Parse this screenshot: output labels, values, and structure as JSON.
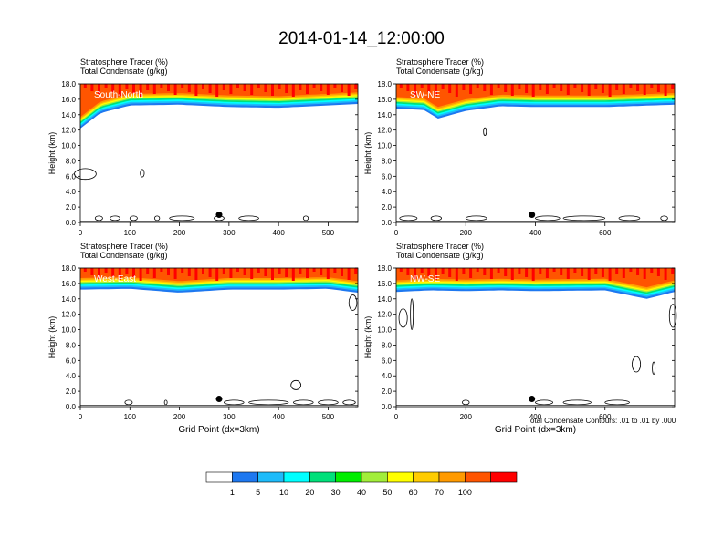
{
  "title": "2014-01-14_12:00:00",
  "footnote": "Total Condensate Contours: .01 to .01 by .000",
  "colors": {
    "levels": [
      "#ffffff",
      "#1e78f0",
      "#1ebbfa",
      "#00ffff",
      "#00e07a",
      "#00ee00",
      "#a2ee3a",
      "#ffff00",
      "#ffcc00",
      "#ff9a00",
      "#ff5500",
      "#ff0000"
    ],
    "contour": "#000000"
  },
  "colorbar": {
    "labels": [
      "1",
      "5",
      "10",
      "20",
      "30",
      "40",
      "50",
      "60",
      "70",
      "100"
    ]
  },
  "chart_data": [
    {
      "type": "heatmap",
      "panel_label": "South-North",
      "subtitle_lines": [
        "Stratosphere Tracer   (%)",
        "Total Condensate   (g/kg)"
      ],
      "ylabel": "Height (km)",
      "xlabel": "",
      "xlim": [
        0,
        560
      ],
      "ylim": [
        0,
        18
      ],
      "xticks": [
        0,
        100,
        200,
        300,
        400,
        500
      ],
      "yticks": [
        0.0,
        2.0,
        4.0,
        6.0,
        8.0,
        10.0,
        12.0,
        14.0,
        16.0,
        18.0
      ],
      "ytick_labels": [
        "0.0",
        "2.0",
        "4.0",
        "6.0",
        "8.0",
        "10.0",
        "12.0",
        "14.0",
        "16.0",
        "18.0"
      ],
      "xticks_shown": true,
      "tracer_base_km": [
        [
          0,
          12.2
        ],
        [
          40,
          14.2
        ],
        [
          100,
          15.2
        ],
        [
          200,
          15.3
        ],
        [
          300,
          15.0
        ],
        [
          400,
          14.9
        ],
        [
          500,
          15.2
        ],
        [
          560,
          15.4
        ]
      ],
      "marker_x": 280,
      "marker_height_km": 1.0,
      "condensate_clouds_km": [
        [
          10,
          6.3,
          22,
          0.7
        ],
        [
          125,
          6.4,
          4,
          0.5
        ]
      ],
      "surface_clouds_x": [
        [
          30,
          45
        ],
        [
          60,
          80
        ],
        [
          100,
          115
        ],
        [
          150,
          160
        ],
        [
          180,
          230
        ],
        [
          270,
          290
        ],
        [
          320,
          360
        ],
        [
          450,
          460
        ]
      ]
    },
    {
      "type": "heatmap",
      "panel_label": "SW-NE",
      "subtitle_lines": [
        "Stratosphere Tracer   (%)",
        "Total Condensate   (g/kg)"
      ],
      "ylabel": "Height (km)",
      "xlabel": "",
      "xlim": [
        0,
        800
      ],
      "ylim": [
        0,
        18
      ],
      "xticks": [
        0,
        200,
        400,
        600
      ],
      "yticks": [
        0.0,
        2.0,
        4.0,
        6.0,
        8.0,
        10.0,
        12.0,
        14.0,
        16.0,
        18.0
      ],
      "ytick_labels": [
        "0.0",
        "2.0",
        "4.0",
        "6.0",
        "8.0",
        "10.0",
        "12.0",
        "14.0",
        "16.0",
        "18.0"
      ],
      "xticks_shown": true,
      "tracer_base_km": [
        [
          0,
          14.8
        ],
        [
          80,
          14.6
        ],
        [
          120,
          13.5
        ],
        [
          200,
          14.5
        ],
        [
          300,
          15.1
        ],
        [
          400,
          15.0
        ],
        [
          600,
          15.0
        ],
        [
          800,
          15.3
        ]
      ],
      "marker_x": 390,
      "marker_height_km": 1.0,
      "condensate_clouds_km": [
        [
          255,
          11.8,
          4,
          0.5
        ]
      ],
      "surface_clouds_x": [
        [
          10,
          60
        ],
        [
          100,
          130
        ],
        [
          200,
          260
        ],
        [
          400,
          470
        ],
        [
          480,
          600
        ],
        [
          640,
          700
        ],
        [
          760,
          780
        ]
      ]
    },
    {
      "type": "heatmap",
      "panel_label": "West-East",
      "subtitle_lines": [
        "Stratosphere Tracer   (%)",
        "Total Condensate   (g/kg)"
      ],
      "ylabel": "Height (km)",
      "xlabel": "Grid Point (dx=3km)",
      "xlim": [
        0,
        560
      ],
      "ylim": [
        0,
        18
      ],
      "xticks": [
        0,
        100,
        200,
        300,
        400,
        500
      ],
      "yticks": [
        0.0,
        2.0,
        4.0,
        6.0,
        8.0,
        10.0,
        12.0,
        14.0,
        16.0,
        18.0
      ],
      "ytick_labels": [
        "0.0",
        "2.0",
        "4.0",
        "6.0",
        "8.0",
        "10.0",
        "12.0",
        "14.0",
        "16.0",
        "18.0"
      ],
      "xticks_shown": true,
      "tracer_base_km": [
        [
          0,
          15.2
        ],
        [
          100,
          15.3
        ],
        [
          200,
          14.8
        ],
        [
          300,
          15.2
        ],
        [
          400,
          15.2
        ],
        [
          500,
          15.3
        ],
        [
          560,
          14.8
        ]
      ],
      "marker_x": 280,
      "marker_height_km": 1.0,
      "condensate_clouds_km": [
        [
          550,
          13.5,
          8,
          1.0
        ],
        [
          435,
          2.8,
          10,
          0.6
        ]
      ],
      "surface_clouds_x": [
        [
          90,
          105
        ],
        [
          170,
          175
        ],
        [
          290,
          330
        ],
        [
          340,
          420
        ],
        [
          430,
          470
        ],
        [
          480,
          520
        ],
        [
          530,
          555
        ]
      ]
    },
    {
      "type": "heatmap",
      "panel_label": "NW-SE",
      "subtitle_lines": [
        "Stratosphere Tracer   (%)",
        "Total Condensate   (g/kg)"
      ],
      "ylabel": "Height (km)",
      "xlabel": "Grid Point (dx=3km)",
      "xlim": [
        0,
        800
      ],
      "ylim": [
        0,
        18
      ],
      "xticks": [
        0,
        200,
        400,
        600
      ],
      "yticks": [
        0.0,
        2.0,
        4.0,
        6.0,
        8.0,
        10.0,
        12.0,
        14.0,
        16.0,
        18.0
      ],
      "ytick_labels": [
        "0.0",
        "2.0",
        "4.0",
        "6.0",
        "8.0",
        "10.0",
        "12.0",
        "14.0",
        "16.0",
        "18.0"
      ],
      "xticks_shown": true,
      "tracer_base_km": [
        [
          0,
          14.9
        ],
        [
          100,
          15.1
        ],
        [
          200,
          15.0
        ],
        [
          300,
          15.1
        ],
        [
          400,
          15.0
        ],
        [
          600,
          15.1
        ],
        [
          720,
          14.0
        ],
        [
          800,
          14.9
        ]
      ],
      "marker_x": 390,
      "marker_height_km": 1.0,
      "condensate_clouds_km": [
        [
          20,
          11.5,
          12,
          1.2
        ],
        [
          45,
          12.0,
          4,
          2.0
        ],
        [
          690,
          5.5,
          12,
          1.0
        ],
        [
          740,
          5.0,
          4,
          0.8
        ],
        [
          795,
          11.8,
          10,
          1.5
        ]
      ],
      "surface_clouds_x": [
        [
          190,
          210
        ],
        [
          400,
          450
        ],
        [
          480,
          560
        ],
        [
          600,
          670
        ]
      ]
    }
  ]
}
